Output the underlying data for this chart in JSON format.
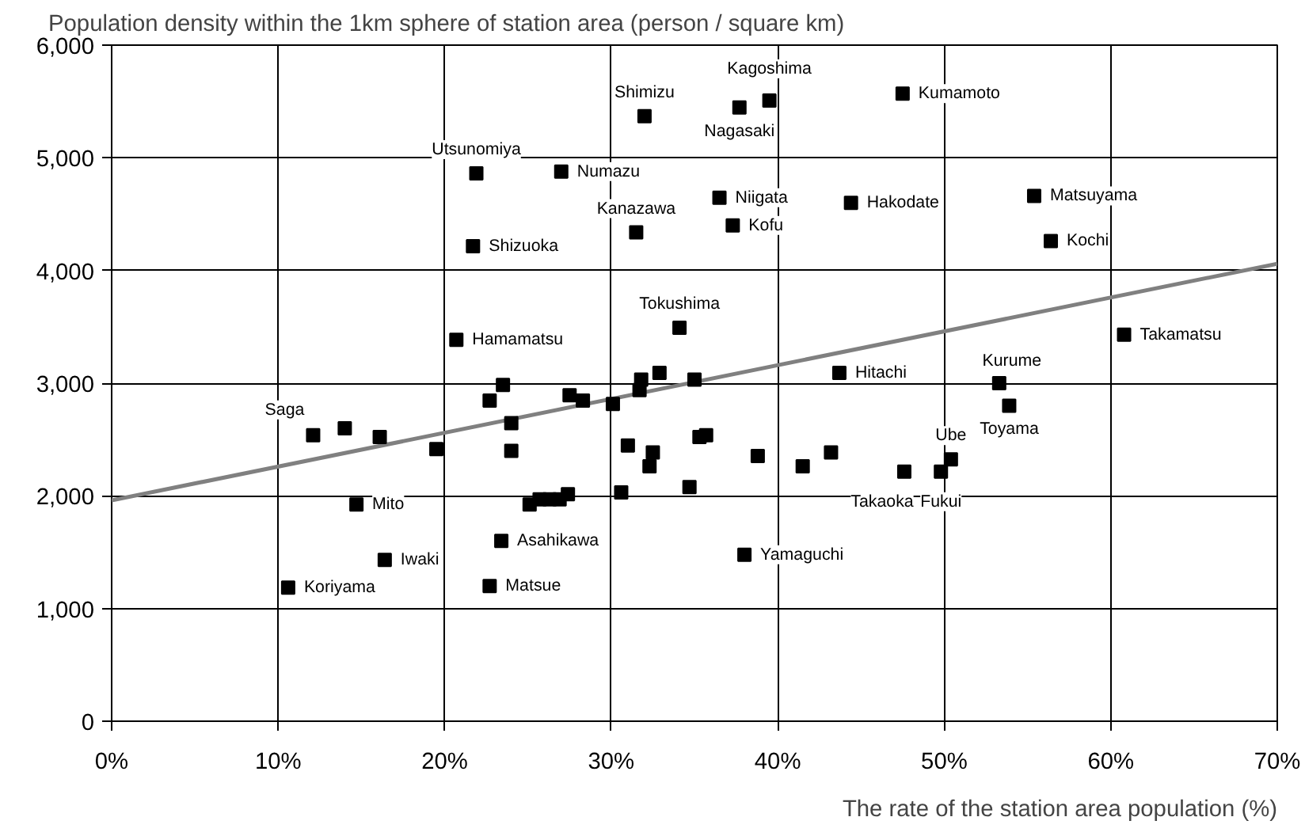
{
  "chart_data": {
    "type": "scatter",
    "title": "Population density within the 1km sphere of station area (person / square km)",
    "xlabel": "The rate of the station area population (%)",
    "xlim": [
      0,
      70
    ],
    "ylim": [
      0,
      6000
    ],
    "xticks": [
      {
        "value": 0,
        "label": "0%"
      },
      {
        "value": 10,
        "label": "10%"
      },
      {
        "value": 20,
        "label": "20%"
      },
      {
        "value": 30,
        "label": "30%"
      },
      {
        "value": 40,
        "label": "40%"
      },
      {
        "value": 50,
        "label": "50%"
      },
      {
        "value": 60,
        "label": "60%"
      },
      {
        "value": 70,
        "label": "70%"
      }
    ],
    "yticks": [
      0,
      {
        "value": 1000,
        "label": "1,000"
      },
      {
        "value": 2000,
        "label": "2,000"
      },
      {
        "value": 3000,
        "label": "3,000"
      },
      {
        "value": 4000,
        "label": "4,000"
      },
      {
        "value": 5000,
        "label": "5,000"
      },
      {
        "value": 6000,
        "label": "6,000"
      }
    ],
    "grid": true,
    "series": [
      {
        "marker": "square",
        "color": "#000000",
        "x": [
          32.0,
          39.5,
          37.7,
          47.5,
          21.9,
          27.0,
          36.5,
          44.4,
          55.4,
          31.5,
          37.3,
          21.7,
          56.4,
          34.1,
          20.7,
          60.8,
          43.7,
          53.3,
          12.1,
          53.9,
          50.4,
          47.6,
          49.8,
          14.7,
          23.4,
          38.0,
          16.4,
          22.7,
          10.6,
          38.8,
          41.5,
          43.2,
          14.0,
          16.1,
          19.5,
          22.7,
          23.5,
          24.0,
          24.0,
          27.5,
          28.3,
          30.1,
          31.8,
          31.7,
          32.9,
          35.0,
          31.0,
          32.5,
          32.3,
          35.3,
          35.7,
          34.7,
          30.6,
          25.1,
          25.7,
          26.3,
          26.9,
          27.4
        ],
        "values": [
          5370,
          5508,
          5446,
          5569,
          4862,
          4877,
          4646,
          4600,
          4662,
          4338,
          4400,
          4215,
          4262,
          3492,
          3385,
          3431,
          3092,
          3000,
          2538,
          2800,
          2323,
          2215,
          2215,
          1923,
          1600,
          1477,
          1431,
          1200,
          1185,
          2354,
          2262,
          2385,
          2600,
          2523,
          2415,
          2846,
          2985,
          2646,
          2400,
          2892,
          2846,
          2815,
          3031,
          2938,
          3092,
          3031,
          2446,
          2385,
          2262,
          2523,
          2538,
          2077,
          2031,
          1923,
          1969,
          1969,
          1969,
          2015
        ]
      },
      {
        "type": "line",
        "color": "#808080",
        "x": [
          0,
          70
        ],
        "values": [
          1960,
          4060
        ]
      }
    ],
    "annotations": [
      {
        "text": "Shimizu",
        "x": 32.0,
        "y": 5370
      },
      {
        "text": "Kagoshima",
        "x": 39.5,
        "y": 5508
      },
      {
        "text": "Nagasaki",
        "x": 37.7,
        "y": 5446
      },
      {
        "text": "Kumamoto",
        "x": 47.5,
        "y": 5569
      },
      {
        "text": "Utsunomiya",
        "x": 21.9,
        "y": 4862
      },
      {
        "text": "Numazu",
        "x": 27.0,
        "y": 4877
      },
      {
        "text": "Niigata",
        "x": 36.5,
        "y": 4646
      },
      {
        "text": "Hakodate",
        "x": 44.4,
        "y": 4600
      },
      {
        "text": "Matsuyama",
        "x": 55.4,
        "y": 4662
      },
      {
        "text": "Kanazawa",
        "x": 31.5,
        "y": 4338
      },
      {
        "text": "Kofu",
        "x": 37.3,
        "y": 4400
      },
      {
        "text": "Shizuoka",
        "x": 21.7,
        "y": 4215
      },
      {
        "text": "Kochi",
        "x": 56.4,
        "y": 4262
      },
      {
        "text": "Tokushima",
        "x": 34.1,
        "y": 3492
      },
      {
        "text": "Hamamatsu",
        "x": 20.7,
        "y": 3385
      },
      {
        "text": "Takamatsu",
        "x": 60.8,
        "y": 3431
      },
      {
        "text": "Hitachi",
        "x": 43.7,
        "y": 3092
      },
      {
        "text": "Kurume",
        "x": 53.3,
        "y": 3000
      },
      {
        "text": "Saga",
        "x": 12.1,
        "y": 2538
      },
      {
        "text": "Toyama",
        "x": 53.9,
        "y": 2800
      },
      {
        "text": "Ube",
        "x": 50.4,
        "y": 2323
      },
      {
        "text": "Takaoka",
        "x": 47.6,
        "y": 2215
      },
      {
        "text": "Fukui",
        "x": 49.8,
        "y": 2215
      },
      {
        "text": "Mito",
        "x": 14.7,
        "y": 1923
      },
      {
        "text": "Asahikawa",
        "x": 23.4,
        "y": 1600
      },
      {
        "text": "Yamaguchi",
        "x": 38.0,
        "y": 1477
      },
      {
        "text": "Iwaki",
        "x": 16.4,
        "y": 1431
      },
      {
        "text": "Matsue",
        "x": 22.7,
        "y": 1200
      },
      {
        "text": "Koriyama",
        "x": 10.6,
        "y": 1185
      }
    ]
  }
}
